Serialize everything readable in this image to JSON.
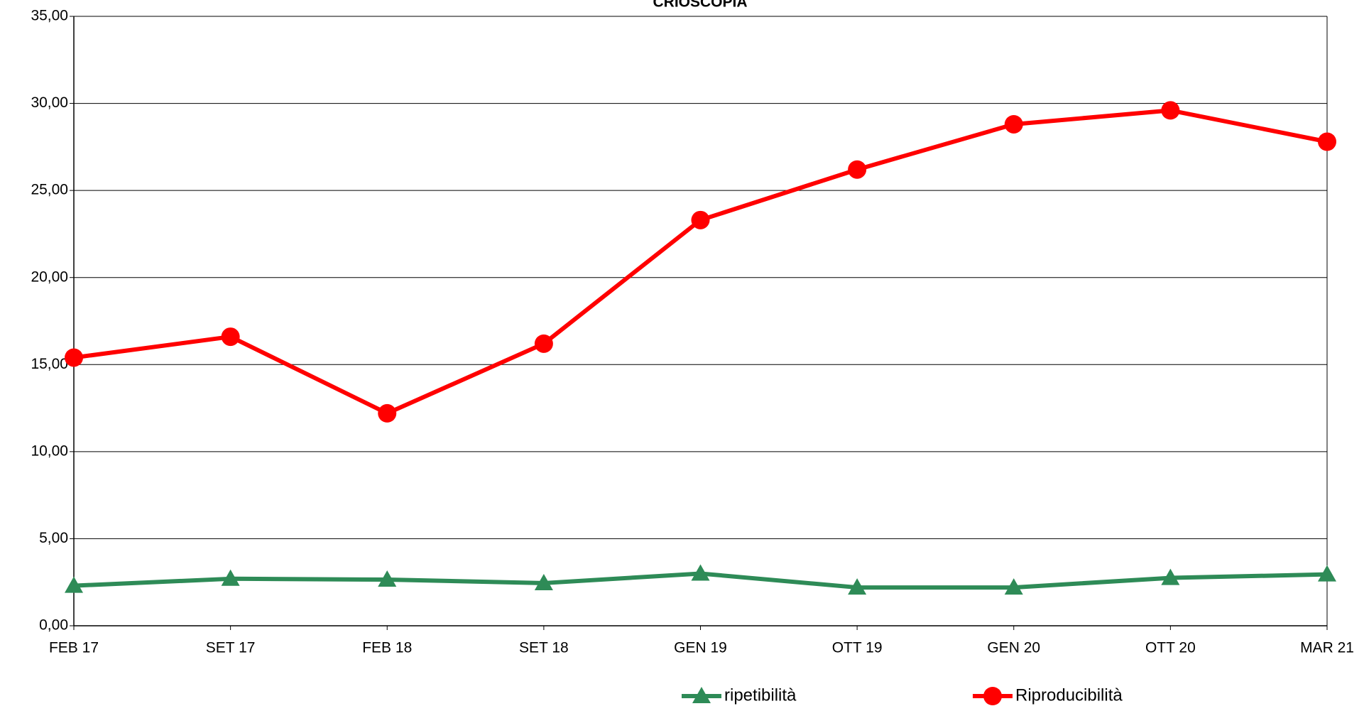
{
  "chart_data": {
    "type": "line",
    "title": "CRIOSCOPIA",
    "categories": [
      "FEB 17",
      "SET 17",
      "FEB 18",
      "SET 18",
      "GEN 19",
      "OTT 19",
      "GEN 20",
      "OTT 20",
      "MAR 21"
    ],
    "series": [
      {
        "name": "ripetibilità",
        "color": "#2e8b57",
        "marker": "triangle",
        "values": [
          2.3,
          2.7,
          2.65,
          2.45,
          3.0,
          2.2,
          2.2,
          2.75,
          2.95
        ]
      },
      {
        "name": "Riproducibilità",
        "color": "#ff0000",
        "marker": "circle",
        "values": [
          15.4,
          16.6,
          12.2,
          16.2,
          23.3,
          26.2,
          28.8,
          29.6,
          27.8
        ]
      }
    ],
    "ylim": [
      0,
      35
    ],
    "yticks": [
      {
        "value": 0,
        "label": "0,00"
      },
      {
        "value": 5,
        "label": "5,00"
      },
      {
        "value": 10,
        "label": "10,00"
      },
      {
        "value": 15,
        "label": "15,00"
      },
      {
        "value": 20,
        "label": "20,00"
      },
      {
        "value": 25,
        "label": "25,00"
      },
      {
        "value": 30,
        "label": "30,00"
      },
      {
        "value": 35,
        "label": "35,00"
      }
    ],
    "grid": true
  }
}
